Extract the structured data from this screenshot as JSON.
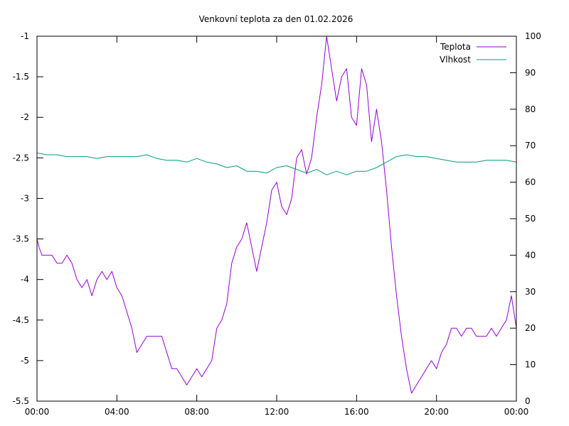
{
  "chart_data": {
    "type": "line",
    "title": "Venkovní teplota za den 01.02.2026",
    "xlabel": "",
    "ylabel": "",
    "y2label": "",
    "x_ticks": [
      "00:00",
      "04:00",
      "08:00",
      "12:00",
      "16:00",
      "20:00",
      "00:00"
    ],
    "xlim_hours": [
      0,
      24
    ],
    "ylim": [
      -5.5,
      -1
    ],
    "y_ticks": [
      -1,
      -1.5,
      -2,
      -2.5,
      -3,
      -3.5,
      -4,
      -4.5,
      -5,
      -5.5
    ],
    "y_tick_labels": [
      "-1",
      "-1.5",
      "-2",
      "-2.5",
      "-3",
      "-3.5",
      "-4",
      "-4.5",
      "-5",
      "-5.5"
    ],
    "y2lim": [
      0,
      100
    ],
    "y2_ticks": [
      0,
      10,
      20,
      30,
      40,
      50,
      60,
      70,
      80,
      90,
      100
    ],
    "y2_tick_labels": [
      "0",
      "10",
      "20",
      "30",
      "40",
      "50",
      "60",
      "70",
      "80",
      "90",
      "100"
    ],
    "grid": false,
    "legend_position": "top-right",
    "series": [
      {
        "name": "Teplota",
        "axis": "left",
        "color": "#9400d3",
        "points": [
          [
            0.0,
            -3.5
          ],
          [
            0.1,
            -3.6
          ],
          [
            0.25,
            -3.7
          ],
          [
            0.5,
            -3.7
          ],
          [
            0.75,
            -3.7
          ],
          [
            1.0,
            -3.8
          ],
          [
            1.25,
            -3.8
          ],
          [
            1.5,
            -3.7
          ],
          [
            1.75,
            -3.8
          ],
          [
            2.0,
            -4.0
          ],
          [
            2.25,
            -4.1
          ],
          [
            2.5,
            -4.0
          ],
          [
            2.75,
            -4.2
          ],
          [
            3.0,
            -4.0
          ],
          [
            3.25,
            -3.9
          ],
          [
            3.5,
            -4.0
          ],
          [
            3.75,
            -3.9
          ],
          [
            4.0,
            -4.1
          ],
          [
            4.25,
            -4.2
          ],
          [
            4.5,
            -4.4
          ],
          [
            4.75,
            -4.6
          ],
          [
            5.0,
            -4.9
          ],
          [
            5.25,
            -4.8
          ],
          [
            5.5,
            -4.7
          ],
          [
            5.75,
            -4.7
          ],
          [
            6.0,
            -4.7
          ],
          [
            6.25,
            -4.7
          ],
          [
            6.5,
            -4.9
          ],
          [
            6.75,
            -5.1
          ],
          [
            7.0,
            -5.1
          ],
          [
            7.25,
            -5.2
          ],
          [
            7.5,
            -5.3
          ],
          [
            7.75,
            -5.2
          ],
          [
            8.0,
            -5.1
          ],
          [
            8.25,
            -5.2
          ],
          [
            8.5,
            -5.1
          ],
          [
            8.75,
            -5.0
          ],
          [
            9.0,
            -4.6
          ],
          [
            9.25,
            -4.5
          ],
          [
            9.5,
            -4.3
          ],
          [
            9.75,
            -3.8
          ],
          [
            10.0,
            -3.6
          ],
          [
            10.25,
            -3.5
          ],
          [
            10.5,
            -3.3
          ],
          [
            10.75,
            -3.6
          ],
          [
            11.0,
            -3.9
          ],
          [
            11.25,
            -3.6
          ],
          [
            11.5,
            -3.3
          ],
          [
            11.75,
            -2.9
          ],
          [
            12.0,
            -2.8
          ],
          [
            12.25,
            -3.1
          ],
          [
            12.5,
            -3.2
          ],
          [
            12.75,
            -3.0
          ],
          [
            13.0,
            -2.5
          ],
          [
            13.25,
            -2.4
          ],
          [
            13.5,
            -2.7
          ],
          [
            13.75,
            -2.5
          ],
          [
            14.0,
            -2.0
          ],
          [
            14.25,
            -1.6
          ],
          [
            14.5,
            -1.0
          ],
          [
            14.75,
            -1.4
          ],
          [
            15.0,
            -1.8
          ],
          [
            15.25,
            -1.5
          ],
          [
            15.5,
            -1.4
          ],
          [
            15.75,
            -2.0
          ],
          [
            16.0,
            -2.1
          ],
          [
            16.25,
            -1.4
          ],
          [
            16.5,
            -1.6
          ],
          [
            16.75,
            -2.3
          ],
          [
            17.0,
            -1.9
          ],
          [
            17.25,
            -2.3
          ],
          [
            17.5,
            -2.9
          ],
          [
            17.75,
            -3.6
          ],
          [
            18.0,
            -4.2
          ],
          [
            18.25,
            -4.7
          ],
          [
            18.5,
            -5.1
          ],
          [
            18.75,
            -5.4
          ],
          [
            19.0,
            -5.3
          ],
          [
            19.25,
            -5.2
          ],
          [
            19.5,
            -5.1
          ],
          [
            19.75,
            -5.0
          ],
          [
            20.0,
            -5.1
          ],
          [
            20.25,
            -4.9
          ],
          [
            20.5,
            -4.8
          ],
          [
            20.75,
            -4.6
          ],
          [
            21.0,
            -4.6
          ],
          [
            21.25,
            -4.7
          ],
          [
            21.5,
            -4.6
          ],
          [
            21.75,
            -4.6
          ],
          [
            22.0,
            -4.7
          ],
          [
            22.25,
            -4.7
          ],
          [
            22.5,
            -4.7
          ],
          [
            22.75,
            -4.6
          ],
          [
            23.0,
            -4.7
          ],
          [
            23.25,
            -4.6
          ],
          [
            23.5,
            -4.5
          ],
          [
            23.75,
            -4.2
          ],
          [
            24.0,
            -4.6
          ]
        ]
      },
      {
        "name": "Vlhkost",
        "axis": "right",
        "color": "#009e73",
        "points": [
          [
            0.0,
            68
          ],
          [
            0.5,
            67.5
          ],
          [
            1.0,
            67.5
          ],
          [
            1.5,
            67
          ],
          [
            2.0,
            67
          ],
          [
            2.5,
            67
          ],
          [
            3.0,
            66.5
          ],
          [
            3.5,
            67
          ],
          [
            4.0,
            67
          ],
          [
            4.5,
            67
          ],
          [
            5.0,
            67
          ],
          [
            5.5,
            67.5
          ],
          [
            6.0,
            66.5
          ],
          [
            6.5,
            66
          ],
          [
            7.0,
            66
          ],
          [
            7.5,
            65.5
          ],
          [
            8.0,
            66.5
          ],
          [
            8.5,
            65.5
          ],
          [
            9.0,
            65
          ],
          [
            9.5,
            64
          ],
          [
            10.0,
            64.5
          ],
          [
            10.5,
            63
          ],
          [
            11.0,
            63
          ],
          [
            11.5,
            62.5
          ],
          [
            12.0,
            64
          ],
          [
            12.5,
            64.5
          ],
          [
            13.0,
            63.5
          ],
          [
            13.5,
            62.5
          ],
          [
            14.0,
            63.5
          ],
          [
            14.5,
            62
          ],
          [
            15.0,
            63
          ],
          [
            15.5,
            62
          ],
          [
            16.0,
            63
          ],
          [
            16.5,
            63
          ],
          [
            17.0,
            64
          ],
          [
            17.5,
            65.5
          ],
          [
            18.0,
            67
          ],
          [
            18.5,
            67.5
          ],
          [
            19.0,
            67
          ],
          [
            19.5,
            67
          ],
          [
            20.0,
            66.5
          ],
          [
            20.5,
            66
          ],
          [
            21.0,
            65.5
          ],
          [
            21.5,
            65.5
          ],
          [
            22.0,
            65.5
          ],
          [
            22.5,
            66
          ],
          [
            23.0,
            66
          ],
          [
            23.5,
            66
          ],
          [
            24.0,
            65.5
          ]
        ]
      }
    ]
  }
}
